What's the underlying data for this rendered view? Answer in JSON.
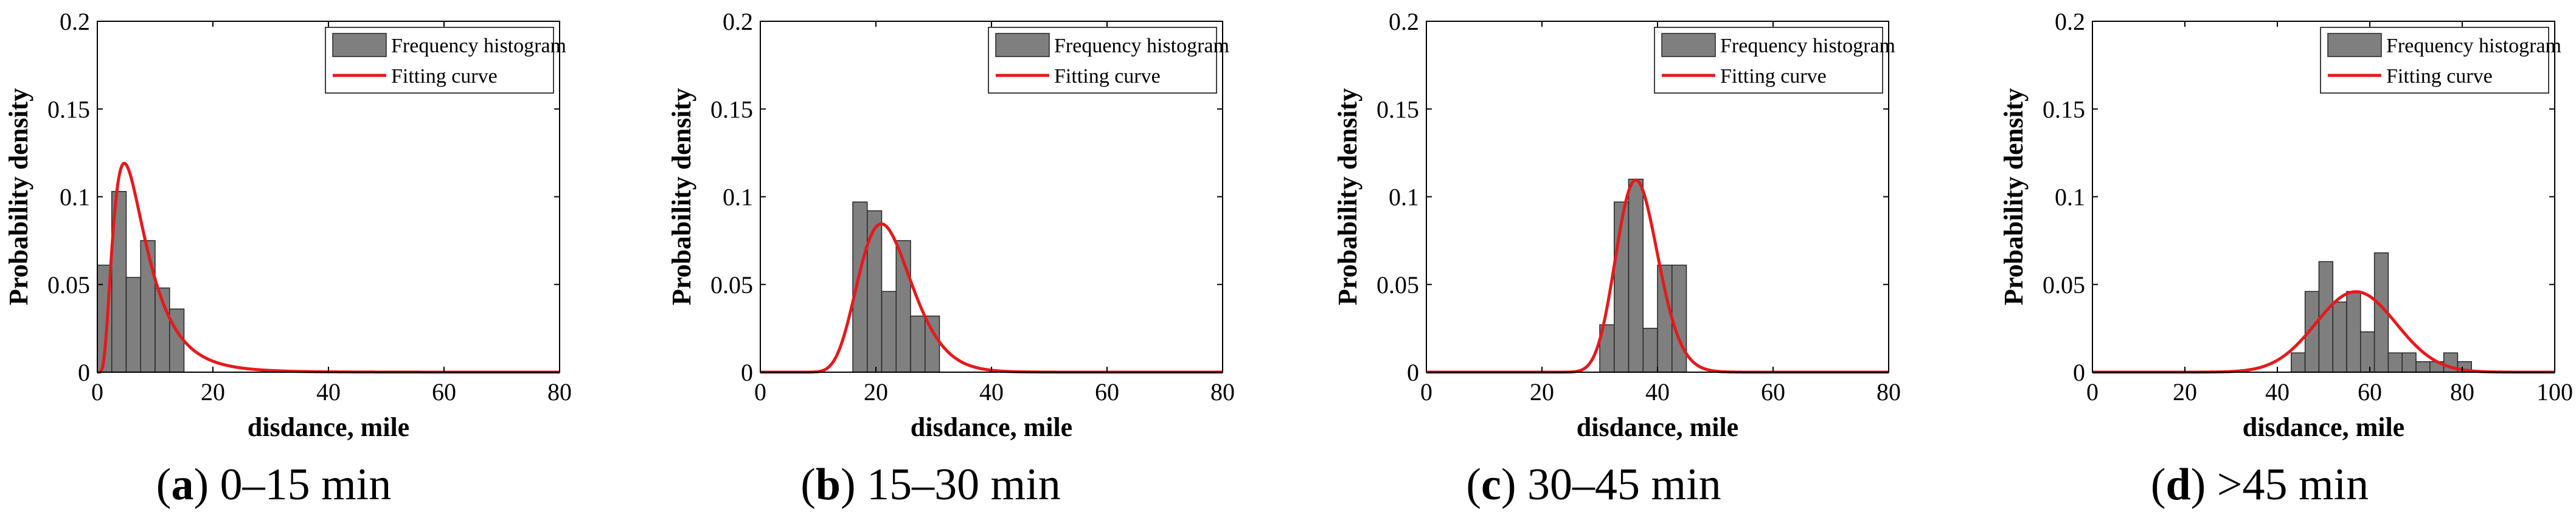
{
  "figure_title": "",
  "colors": {
    "bar_fill": "#7f7f7f",
    "bar_stroke": "#262626",
    "curve": "#e41a1c",
    "axis": "#000000"
  },
  "legend_labels": {
    "histogram": "Frequency histogram",
    "curve": "Fitting curve"
  },
  "chart_data": [
    {
      "type": "bar",
      "id": "a",
      "caption_letter": "a",
      "caption_text": "0–15 min",
      "xlabel": "disdance, mile",
      "ylabel": "Probability density",
      "xlim": [
        0,
        80
      ],
      "ylim": [
        0,
        0.2
      ],
      "xticks": [
        0,
        20,
        40,
        60,
        80
      ],
      "yticks": [
        0,
        0.05,
        0.1,
        0.15,
        0.2
      ],
      "ytick_labels": [
        "0",
        "0.05",
        "0.1",
        "0.15",
        "0.2"
      ],
      "bin_width": 2.5,
      "histogram": {
        "bin_starts": [
          0,
          2.5,
          5,
          7.5,
          10,
          12.5
        ],
        "values": [
          0.061,
          0.103,
          0.054,
          0.075,
          0.048,
          0.036
        ]
      },
      "curve": {
        "kind": "lognormal",
        "mu": 1.9,
        "sigma": 0.6
      }
    },
    {
      "type": "bar",
      "id": "b",
      "caption_letter": "b",
      "caption_text": "15–30 min",
      "xlabel": "disdance, mile",
      "ylabel": "Probability density",
      "xlim": [
        0,
        80
      ],
      "ylim": [
        0,
        0.2
      ],
      "xticks": [
        0,
        20,
        40,
        60,
        80
      ],
      "yticks": [
        0,
        0.05,
        0.1,
        0.15,
        0.2
      ],
      "ytick_labels": [
        "0",
        "0.05",
        "0.1",
        "0.15",
        "0.2"
      ],
      "bin_width": 2.5,
      "histogram": {
        "bin_starts": [
          16,
          18.5,
          21,
          23.5,
          26,
          28.5
        ],
        "values": [
          0.097,
          0.092,
          0.046,
          0.075,
          0.032,
          0.032
        ]
      },
      "curve": {
        "kind": "lognormal",
        "mu": 3.09,
        "sigma": 0.22
      }
    },
    {
      "type": "bar",
      "id": "c",
      "caption_letter": "c",
      "caption_text": "30–45 min",
      "xlabel": "disdance, mile",
      "ylabel": "Probability density",
      "xlim": [
        0,
        80
      ],
      "ylim": [
        0,
        0.2
      ],
      "xticks": [
        0,
        20,
        40,
        60,
        80
      ],
      "yticks": [
        0,
        0.05,
        0.1,
        0.15,
        0.2
      ],
      "ytick_labels": [
        "0",
        "0.05",
        "0.1",
        "0.15",
        "0.2"
      ],
      "bin_width": 2.5,
      "histogram": {
        "bin_starts": [
          30,
          32.5,
          35,
          37.5,
          40,
          42.5
        ],
        "values": [
          0.027,
          0.097,
          0.11,
          0.025,
          0.061,
          0.061
        ]
      },
      "curve": {
        "kind": "lognormal",
        "mu": 3.6,
        "sigma": 0.1
      }
    },
    {
      "type": "bar",
      "id": "d",
      "caption_letter": "d",
      "caption_text": ">45 min",
      "xlabel": "disdance, mile",
      "ylabel": "Probability density",
      "xlim": [
        0,
        100
      ],
      "ylim": [
        0,
        0.2
      ],
      "xticks": [
        0,
        20,
        40,
        60,
        80,
        100
      ],
      "yticks": [
        0,
        0.05,
        0.1,
        0.15,
        0.2
      ],
      "ytick_labels": [
        "0",
        "0.05",
        "0.1",
        "0.15",
        "0.2"
      ],
      "bin_width": 3,
      "histogram": {
        "bin_starts": [
          43,
          46,
          49,
          52,
          55,
          58,
          61,
          64,
          67,
          70,
          73,
          76,
          79
        ],
        "values": [
          0.011,
          0.046,
          0.063,
          0.04,
          0.046,
          0.023,
          0.068,
          0.011,
          0.011,
          0.006,
          0.006,
          0.011,
          0.006
        ]
      },
      "curve": {
        "kind": "normal",
        "mean": 57,
        "sd": 8.7
      }
    }
  ]
}
